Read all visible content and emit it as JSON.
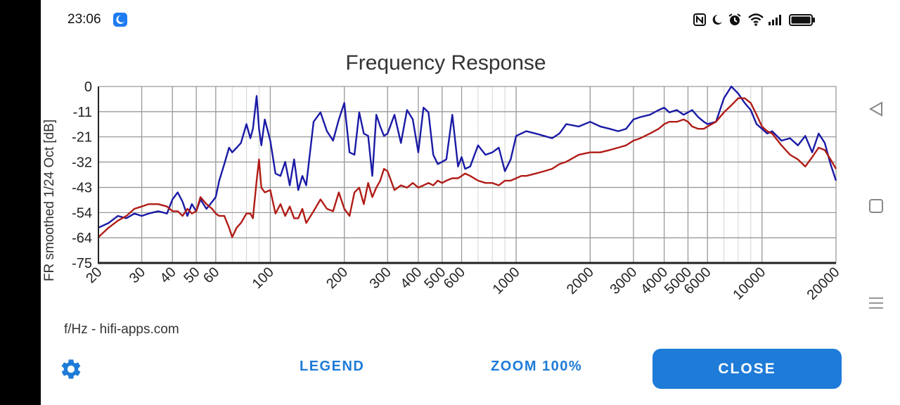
{
  "status_bar": {
    "time": "23:06",
    "icons": [
      "app-notification-icon",
      "nfc-icon",
      "moon-icon",
      "alarm-icon",
      "wifi-icon",
      "signal-icon",
      "battery-icon"
    ]
  },
  "chart_data": {
    "type": "line",
    "title": "Frequency Response",
    "ylabel": "FR smoothed 1/24 Oct [dB]",
    "xlabel": "f/Hz - hifi-apps.com",
    "x_scale": "log",
    "xlim": [
      20,
      20000
    ],
    "ylim": [
      -75,
      0
    ],
    "y_tick_labels": [
      "0",
      "-11",
      "-21",
      "-32",
      "-43",
      "-54",
      "-64",
      "-75"
    ],
    "y_tick_values": [
      0,
      -10.7,
      -21.4,
      -32.1,
      -42.9,
      -53.6,
      -64.3,
      -75
    ],
    "x_tick_labels": [
      "20",
      "30",
      "40",
      "50",
      "60",
      "100",
      "200",
      "300",
      "400",
      "500",
      "600",
      "1000",
      "2000",
      "3000",
      "4000",
      "5000",
      "6000",
      "10000",
      "20000"
    ],
    "x_tick_values": [
      20,
      30,
      40,
      50,
      60,
      100,
      200,
      300,
      400,
      500,
      600,
      1000,
      2000,
      3000,
      4000,
      5000,
      6000,
      10000,
      20000
    ],
    "grid": true,
    "series": [
      {
        "color": "#1a1aa6",
        "x": [
          20,
          22,
          24,
          26,
          28,
          30,
          32,
          35,
          38,
          40,
          42,
          44,
          46,
          48,
          50,
          52,
          55,
          58,
          60,
          62,
          65,
          68,
          70,
          73,
          76,
          80,
          83,
          85,
          88,
          90,
          92,
          95,
          100,
          105,
          110,
          115,
          120,
          125,
          130,
          135,
          140,
          150,
          160,
          170,
          180,
          190,
          200,
          210,
          220,
          230,
          240,
          250,
          260,
          270,
          280,
          290,
          300,
          320,
          340,
          360,
          380,
          400,
          420,
          440,
          460,
          480,
          500,
          520,
          550,
          580,
          600,
          620,
          650,
          700,
          750,
          800,
          850,
          900,
          950,
          1000,
          1050,
          1100,
          1200,
          1300,
          1400,
          1500,
          1600,
          1800,
          2000,
          2200,
          2400,
          2600,
          2800,
          3000,
          3200,
          3500,
          3800,
          4000,
          4200,
          4500,
          4800,
          5000,
          5200,
          5500,
          5800,
          6000,
          6500,
          7000,
          7500,
          8000,
          8500,
          9000,
          9500,
          10000,
          10500,
          11000,
          12000,
          13000,
          14000,
          15000,
          16000,
          17000,
          18000,
          19000,
          20000
        ],
        "y": [
          -60,
          -58,
          -55,
          -56,
          -54,
          -55,
          -54,
          -53,
          -54,
          -48,
          -45,
          -49,
          -55,
          -50,
          -53,
          -48,
          -52,
          -49,
          -47,
          -40,
          -33,
          -26,
          -28,
          -26,
          -24,
          -16,
          -22,
          -18,
          -4,
          -18,
          -25,
          -14,
          -23,
          -37,
          -38,
          -32,
          -42,
          -31,
          -44,
          -38,
          -42,
          -15,
          -11,
          -19,
          -23,
          -14,
          -7,
          -28,
          -29,
          -11,
          -20,
          -21,
          -38,
          -12,
          -17,
          -21,
          -20,
          -12,
          -24,
          -10,
          -14,
          -28,
          -9,
          -11,
          -29,
          -33,
          -32,
          -31,
          -12,
          -34,
          -30,
          -35,
          -34,
          -25,
          -29,
          -28,
          -26,
          -36,
          -31,
          -21,
          -20,
          -19,
          -20,
          -21,
          -22,
          -20,
          -16,
          -17,
          -15,
          -17,
          -18,
          -19,
          -18,
          -14,
          -13,
          -12,
          -10,
          -9,
          -11,
          -10,
          -12,
          -11,
          -10,
          -13,
          -15,
          -16,
          -15,
          -5,
          0,
          -3,
          -7,
          -10,
          -16,
          -18,
          -20,
          -19,
          -23,
          -22,
          -25,
          -21,
          -28,
          -20,
          -24,
          -33,
          -40
        ]
      },
      {
        "color": "#b01c16",
        "x": [
          20,
          22,
          24,
          26,
          28,
          30,
          32,
          35,
          38,
          40,
          42,
          44,
          46,
          48,
          50,
          52,
          55,
          58,
          60,
          62,
          65,
          68,
          70,
          73,
          76,
          80,
          83,
          85,
          88,
          90,
          92,
          95,
          100,
          105,
          110,
          115,
          120,
          125,
          130,
          135,
          140,
          150,
          160,
          170,
          180,
          190,
          200,
          210,
          220,
          230,
          240,
          250,
          260,
          270,
          280,
          290,
          300,
          320,
          340,
          360,
          380,
          400,
          420,
          440,
          460,
          480,
          500,
          520,
          550,
          580,
          600,
          620,
          650,
          700,
          750,
          800,
          850,
          900,
          950,
          1000,
          1050,
          1100,
          1200,
          1300,
          1400,
          1500,
          1600,
          1800,
          2000,
          2200,
          2400,
          2600,
          2800,
          3000,
          3200,
          3500,
          3800,
          4000,
          4200,
          4500,
          4800,
          5000,
          5200,
          5500,
          5800,
          6000,
          6500,
          7000,
          7500,
          8000,
          8500,
          9000,
          9500,
          10000,
          10500,
          11000,
          12000,
          13000,
          14000,
          15000,
          16000,
          17000,
          18000,
          19000,
          20000
        ],
        "y": [
          -64,
          -60,
          -57,
          -55,
          -52,
          -51,
          -50,
          -50,
          -51,
          -53,
          -53,
          -55,
          -52,
          -54,
          -53,
          -47,
          -50,
          -52,
          -54,
          -55,
          -55,
          -60,
          -64,
          -60,
          -58,
          -54,
          -54,
          -56,
          -40,
          -31,
          -43,
          -45,
          -44,
          -54,
          -50,
          -55,
          -51,
          -56,
          -56,
          -52,
          -58,
          -53,
          -48,
          -52,
          -53,
          -45,
          -52,
          -55,
          -45,
          -43,
          -50,
          -41,
          -47,
          -43,
          -40,
          -35,
          -36,
          -44,
          -42,
          -43,
          -41,
          -43,
          -42,
          -41,
          -42,
          -40,
          -41,
          -40,
          -39,
          -39,
          -38,
          -37,
          -38,
          -40,
          -41,
          -41,
          -42,
          -40,
          -40,
          -39,
          -38,
          -38,
          -37,
          -36,
          -35,
          -33,
          -32,
          -29,
          -28,
          -28,
          -27,
          -26,
          -25,
          -23,
          -22,
          -20,
          -18,
          -16,
          -15,
          -15,
          -14,
          -15,
          -17,
          -18,
          -18,
          -17,
          -15,
          -11,
          -8,
          -5,
          -5,
          -7,
          -12,
          -17,
          -19,
          -20,
          -25,
          -29,
          -31,
          -34,
          -30,
          -26,
          -27,
          -31,
          -35
        ]
      }
    ]
  },
  "footer": {
    "credit": "f/Hz - hifi-apps.com"
  },
  "actions": {
    "legend": "LEGEND",
    "zoom": "ZOOM 100%",
    "close": "CLOSE"
  },
  "nav": {
    "icons": [
      "back-triangle-icon",
      "home-square-icon",
      "recents-menu-icon"
    ]
  }
}
